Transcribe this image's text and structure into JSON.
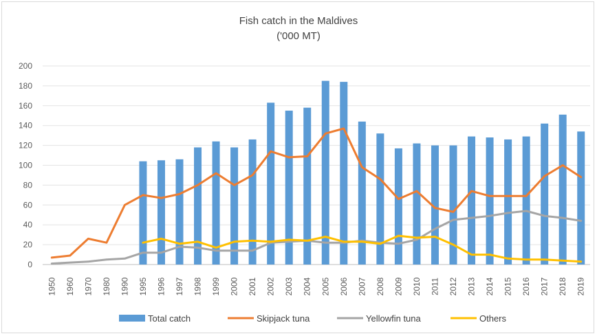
{
  "chart_data": {
    "type": "bar",
    "title": "Fish catch in the Maldives",
    "subtitle": "('000 MT)",
    "categories": [
      "1950",
      "1960",
      "1970",
      "1980",
      "1990",
      "1995",
      "1996",
      "1997",
      "1998",
      "1999",
      "2000",
      "2001",
      "2002",
      "2003",
      "2004",
      "2005",
      "2006",
      "2007",
      "2008",
      "2009",
      "2010",
      "2011",
      "2012",
      "2013",
      "2014",
      "2015",
      "2016",
      "2017",
      "2018",
      "2019"
    ],
    "ylim": [
      0,
      200
    ],
    "yticks": [
      0,
      20,
      40,
      60,
      80,
      100,
      120,
      140,
      160,
      180,
      200
    ],
    "grid": true,
    "legend_position": "bottom",
    "series": [
      {
        "name": "Total catch",
        "type": "bar",
        "color": "#5b9bd5",
        "values": [
          null,
          null,
          null,
          null,
          null,
          104,
          105,
          106,
          118,
          124,
          118,
          126,
          163,
          155,
          158,
          185,
          184,
          144,
          132,
          117,
          122,
          120,
          120,
          129,
          128,
          126,
          129,
          142,
          151,
          134
        ]
      },
      {
        "name": "Skipjack tuna",
        "type": "line",
        "color": "#ed7d31",
        "values": [
          7,
          9,
          26,
          22,
          60,
          70,
          67,
          71,
          80,
          92,
          80,
          90,
          114,
          108,
          109,
          132,
          137,
          98,
          86,
          66,
          74,
          57,
          53,
          74,
          69,
          69,
          69,
          89,
          100,
          88
        ]
      },
      {
        "name": "Yellowfin tuna",
        "type": "line",
        "color": "#a5a5a5",
        "values": [
          1,
          2,
          3,
          5,
          6,
          12,
          12,
          18,
          17,
          14,
          14,
          14,
          22,
          23,
          24,
          22,
          22,
          24,
          22,
          21,
          25,
          36,
          45,
          47,
          49,
          52,
          54,
          49,
          47,
          44
        ]
      },
      {
        "name": "Others",
        "type": "line",
        "color": "#ffc000",
        "values": [
          null,
          null,
          null,
          null,
          null,
          22,
          26,
          21,
          23,
          17,
          23,
          24,
          23,
          25,
          24,
          28,
          23,
          23,
          21,
          29,
          27,
          28,
          20,
          10,
          10,
          6,
          5,
          5,
          4,
          3
        ]
      }
    ]
  }
}
